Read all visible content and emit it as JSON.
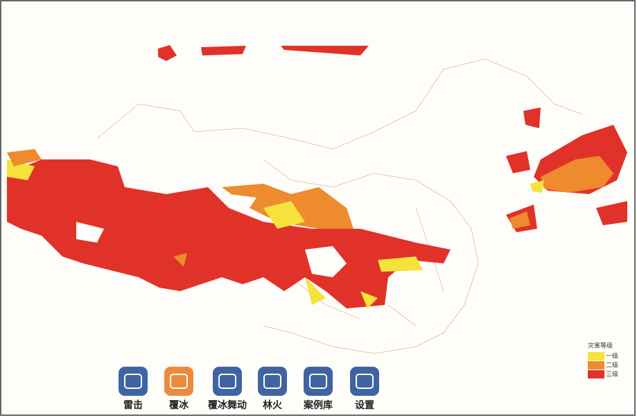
{
  "legend": {
    "title": "灾害等级",
    "items": [
      {
        "label": "一级",
        "color": "#f5e23a"
      },
      {
        "label": "二级",
        "color": "#ee8b2e"
      },
      {
        "label": "三级",
        "color": "#e1322a"
      }
    ]
  },
  "toolbar": {
    "buttons": [
      {
        "label": "雷击",
        "color": "#3f64a4"
      },
      {
        "label": "覆冰",
        "color": "#ee8a3a"
      },
      {
        "label": "覆冰舞动",
        "color": "#3f64a4"
      },
      {
        "label": "林火",
        "color": "#3f64a4"
      },
      {
        "label": "案例库",
        "color": "#3f64a4"
      },
      {
        "label": "设置",
        "color": "#3f64a4"
      }
    ]
  }
}
